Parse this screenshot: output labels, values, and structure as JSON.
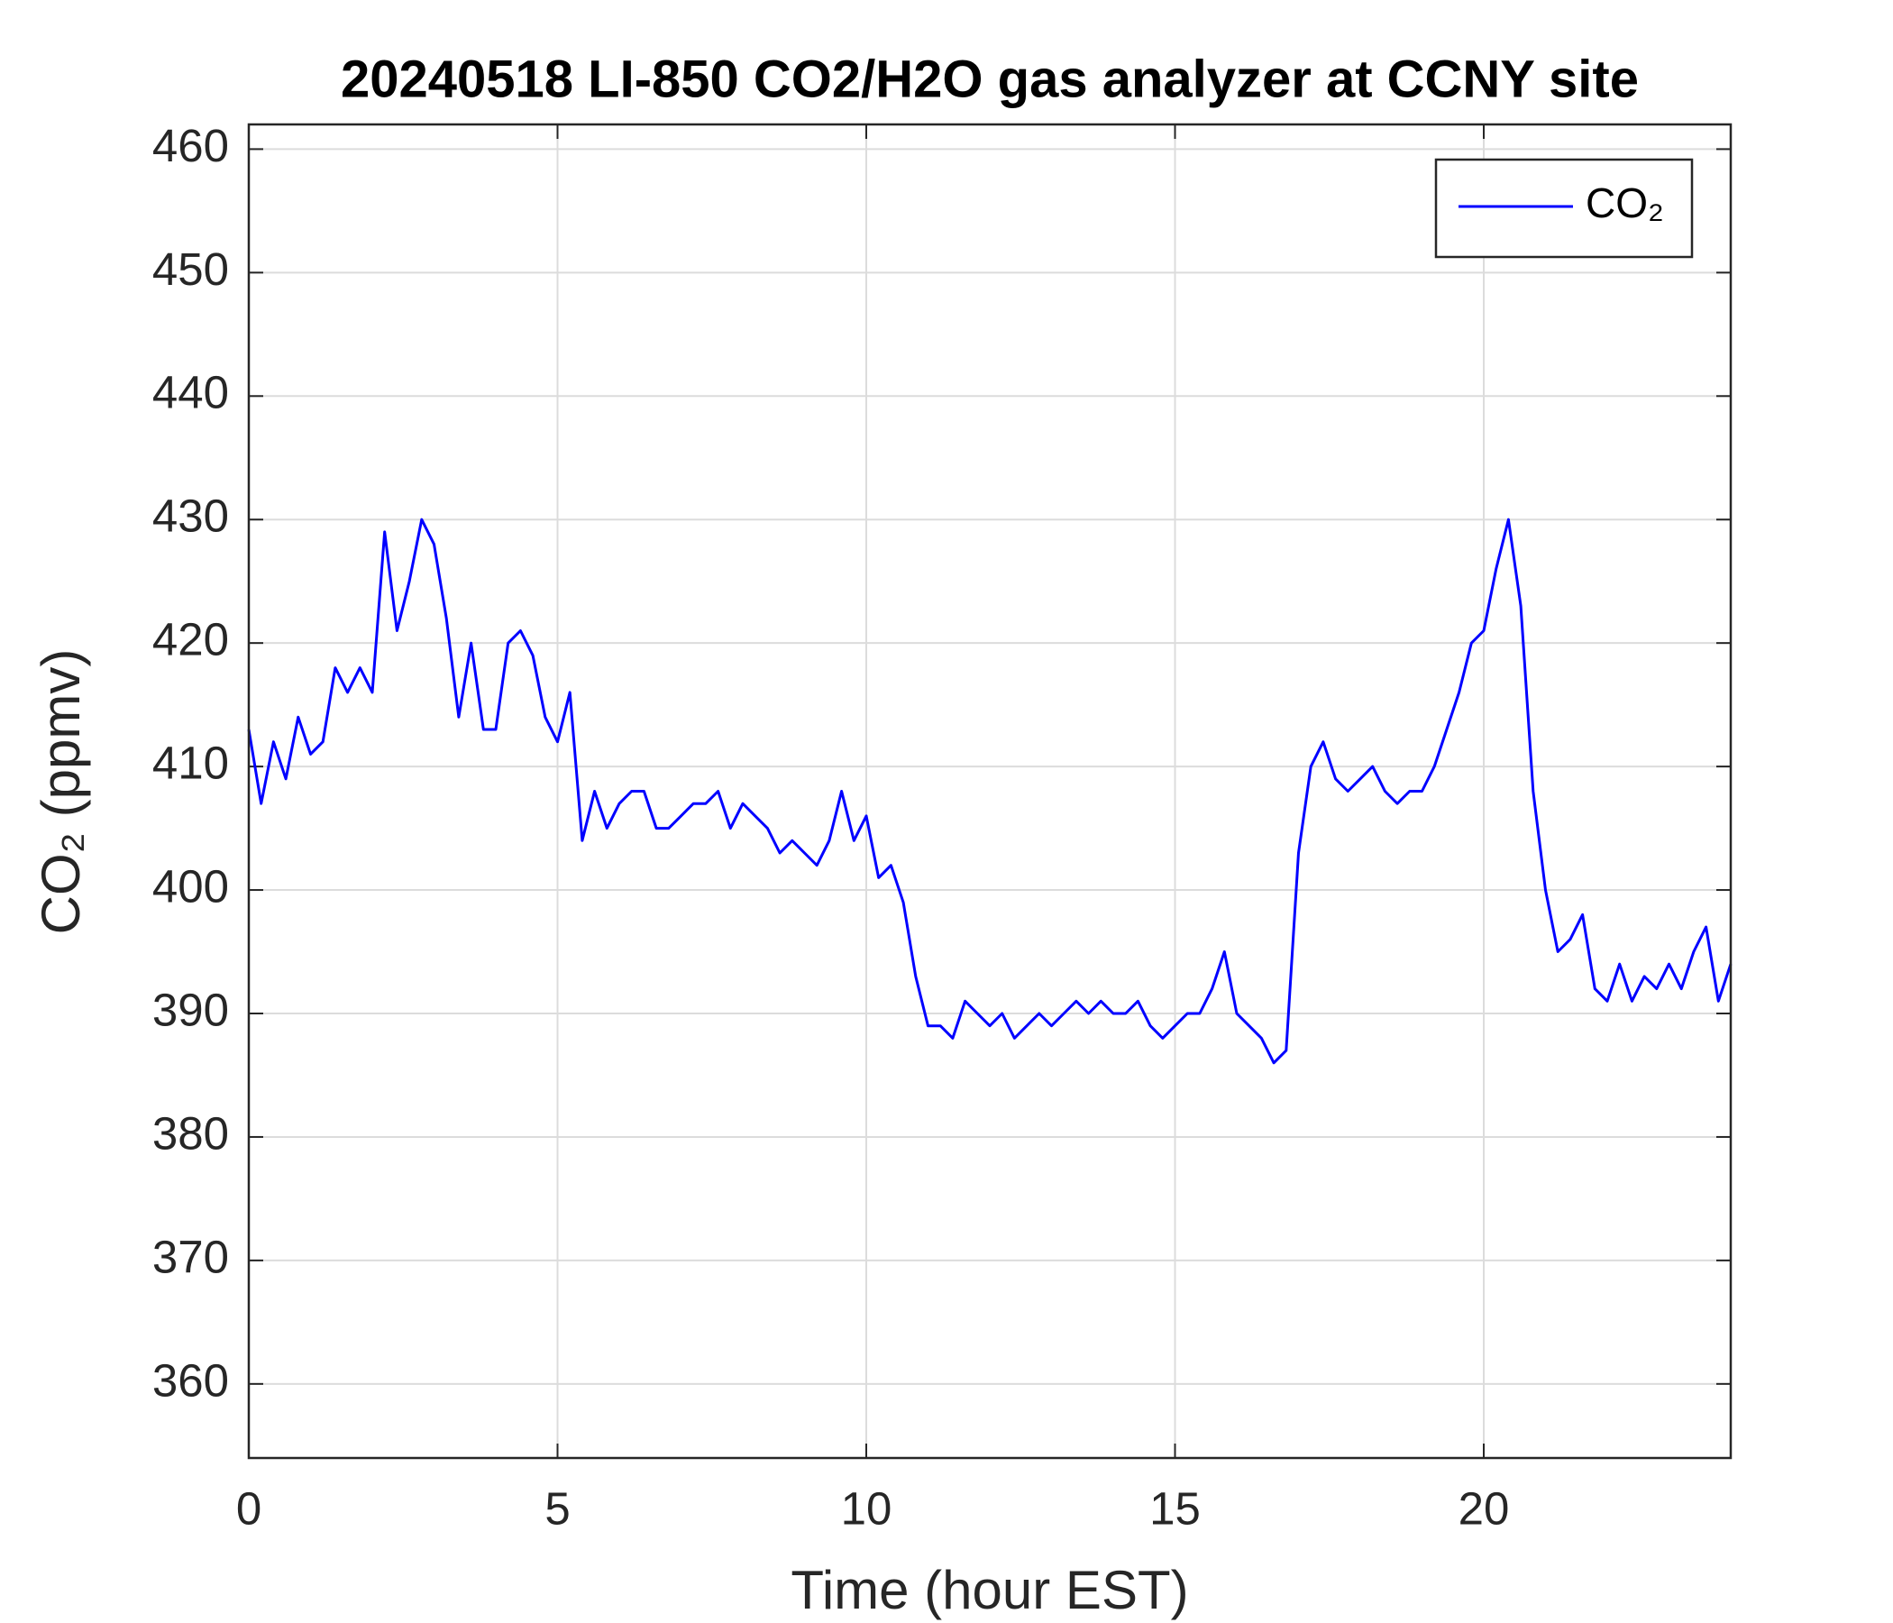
{
  "chart_data": {
    "type": "line",
    "title": "20240518 LI-850 CO2/H2O gas analyzer at CCNY site",
    "x_label": "Time (hour EST)",
    "y_label": "CO₂ (ppmv)",
    "x": [
      0,
      0.2,
      0.4,
      0.6,
      0.8,
      1,
      1.2,
      1.4,
      1.6,
      1.8,
      2,
      2.2,
      2.4,
      2.6,
      2.8,
      3,
      3.2,
      3.4,
      3.6,
      3.8,
      4,
      4.2,
      4.4,
      4.6,
      4.8,
      5,
      5.2,
      5.4,
      5.6,
      5.8,
      6,
      6.2,
      6.4,
      6.6,
      6.8,
      7,
      7.2,
      7.4,
      7.6,
      7.8,
      8,
      8.2,
      8.4,
      8.6,
      8.8,
      9,
      9.2,
      9.4,
      9.6,
      9.8,
      10,
      10.2,
      10.4,
      10.6,
      10.8,
      11,
      11.2,
      11.4,
      11.6,
      11.8,
      12,
      12.2,
      12.4,
      12.6,
      12.8,
      13,
      13.2,
      13.4,
      13.6,
      13.8,
      14,
      14.2,
      14.4,
      14.6,
      14.8,
      15,
      15.2,
      15.4,
      15.6,
      15.8,
      16,
      16.2,
      16.4,
      16.6,
      16.8,
      17,
      17.2,
      17.4,
      17.6,
      17.8,
      18,
      18.2,
      18.4,
      18.6,
      18.8,
      19,
      19.2,
      19.4,
      19.6,
      19.8,
      20,
      20.2,
      20.4,
      20.6,
      20.8,
      21,
      21.2,
      21.4,
      21.6,
      21.8,
      22,
      22.2,
      22.4,
      22.6,
      22.8,
      23,
      23.2,
      23.4,
      23.6,
      23.8,
      24
    ],
    "series": [
      {
        "name": "CO₂",
        "color": "#0000ff",
        "values": [
          413,
          407,
          412,
          409,
          414,
          411,
          412,
          418,
          416,
          418,
          416,
          429,
          421,
          425,
          430,
          428,
          422,
          414,
          420,
          413,
          413,
          420,
          421,
          419,
          414,
          412,
          416,
          404,
          408,
          405,
          407,
          408,
          408,
          405,
          405,
          406,
          407,
          407,
          408,
          405,
          407,
          406,
          405,
          403,
          404,
          403,
          402,
          404,
          408,
          404,
          406,
          401,
          402,
          399,
          393,
          389,
          389,
          388,
          391,
          390,
          389,
          390,
          388,
          389,
          390,
          389,
          390,
          391,
          390,
          391,
          390,
          390,
          391,
          389,
          388,
          389,
          390,
          390,
          392,
          395,
          390,
          389,
          388,
          386,
          387,
          403,
          410,
          412,
          409,
          408,
          409,
          410,
          408,
          407,
          408,
          408,
          410,
          413,
          416,
          420,
          421,
          426,
          430,
          423,
          408,
          400,
          395,
          396,
          398,
          392,
          391,
          394,
          391,
          393,
          392,
          394,
          392,
          395,
          397,
          391,
          394
        ]
      }
    ],
    "xlim": [
      0,
      24
    ],
    "ylim": [
      354,
      462
    ],
    "xticks": [
      0,
      5,
      10,
      15,
      20
    ],
    "yticks": [
      360,
      370,
      380,
      390,
      400,
      410,
      420,
      430,
      440,
      450,
      460
    ],
    "grid": true,
    "legend": "upper right"
  }
}
